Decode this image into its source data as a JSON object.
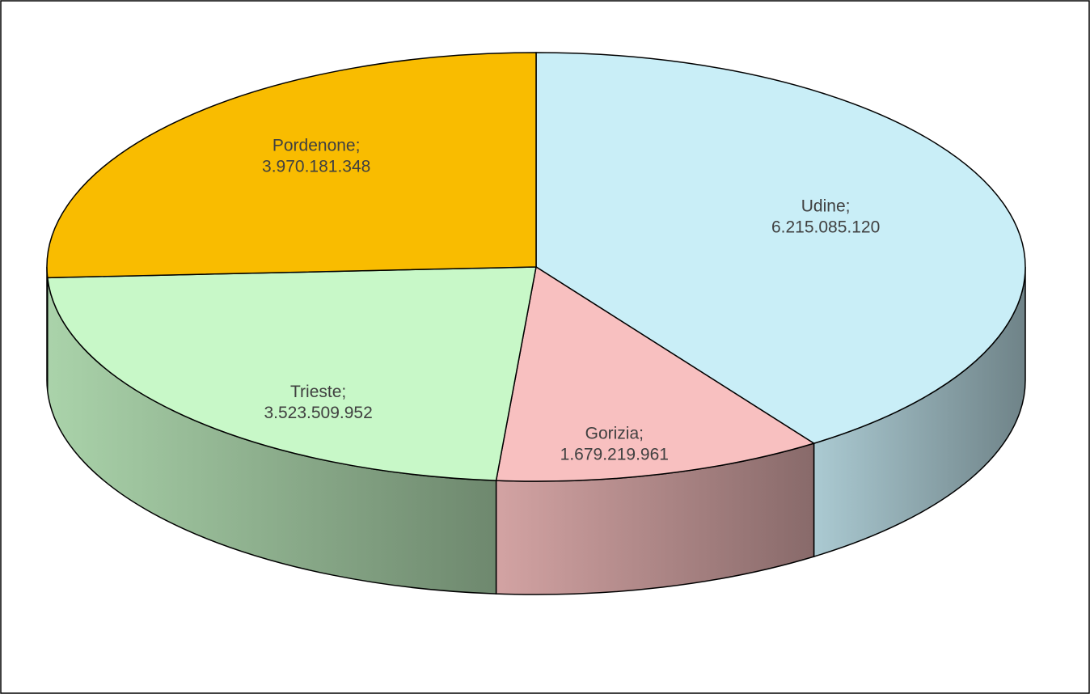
{
  "chart_data": {
    "type": "pie",
    "categories": [
      "Udine",
      "Gorizia",
      "Trieste",
      "Pordenone"
    ],
    "values": [
      6215085120,
      1679219961,
      3523509952,
      3970181348
    ],
    "value_labels": [
      "6.215.085.120",
      "1.679.219.961",
      "3.523.509.952",
      "3.970.181.348"
    ],
    "label_separator": ";",
    "colors": [
      "#c9eef7",
      "#f8c0c0",
      "#c8f8c8",
      "#f9bc00"
    ],
    "start_angle": 0,
    "direction": "clockwise",
    "three_d": true
  }
}
